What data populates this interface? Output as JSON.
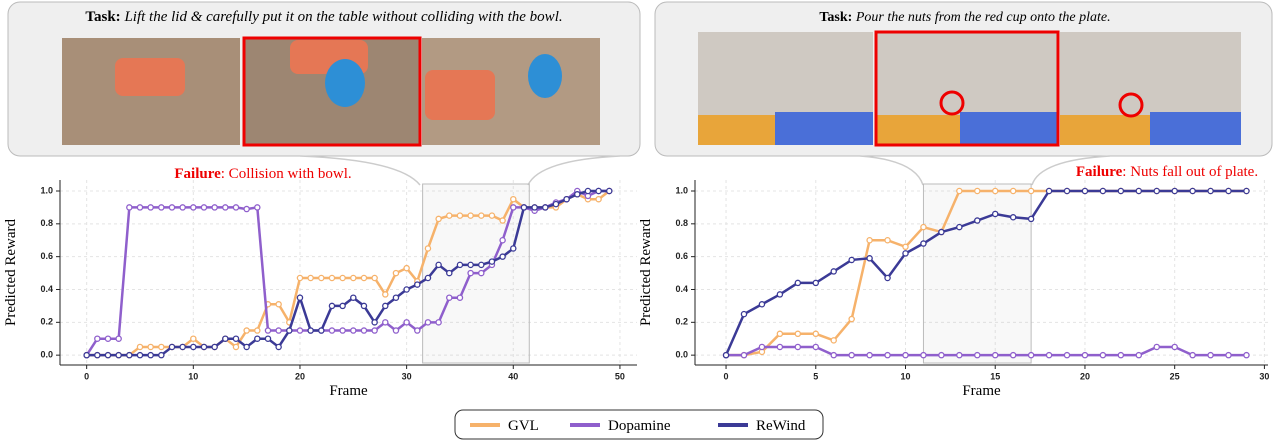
{
  "chart_data": [
    {
      "type": "line",
      "task_label": "Task:",
      "task": "Lift the lid & carefully put it on the table without colliding with the bowl.",
      "failure_label": "Failure",
      "failure_text": ": Collision with bowl.",
      "xlabel": "Frame",
      "ylabel": "Predicted Reward",
      "x": [
        0,
        1,
        2,
        3,
        4,
        5,
        6,
        7,
        8,
        9,
        10,
        11,
        12,
        13,
        14,
        15,
        16,
        17,
        18,
        19,
        20,
        21,
        22,
        23,
        24,
        25,
        26,
        27,
        28,
        29,
        30,
        31,
        32,
        33,
        34,
        35,
        36,
        37,
        38,
        39,
        40,
        41,
        42,
        43,
        44,
        45,
        46,
        47,
        48,
        49
      ],
      "xlim": [
        -2.5,
        51.6
      ],
      "xticks": [
        0,
        10,
        20,
        30,
        40,
        50
      ],
      "ylim": [
        -0.06,
        1.067
      ],
      "yticks": [
        {
          "value": 0,
          "label": "0.0"
        },
        0.2,
        0.4,
        0.6,
        0.8,
        {
          "value": 1,
          "label": "1.0"
        }
      ],
      "grid": true,
      "highlight": [
        31.5,
        41.5
      ],
      "series": [
        {
          "name": "GVL",
          "color": "#f6b26b",
          "values": [
            0,
            0,
            0,
            0,
            0,
            0.05,
            0.05,
            0.05,
            0.05,
            0.05,
            0.1,
            0.05,
            0.05,
            0.1,
            0.05,
            0.15,
            0.15,
            0.31,
            0.31,
            0.2,
            0.47,
            0.47,
            0.47,
            0.47,
            0.47,
            0.47,
            0.47,
            0.47,
            0.37,
            0.5,
            0.53,
            0.45,
            0.65,
            0.83,
            0.85,
            0.85,
            0.85,
            0.85,
            0.85,
            0.82,
            0.95,
            0.9,
            0.9,
            0.9,
            0.9,
            0.95,
            0.98,
            0.95,
            0.95,
            1.0
          ]
        },
        {
          "name": "Dopamine",
          "color": "#8f5fcc",
          "values": [
            0,
            0.1,
            0.1,
            0.1,
            0.9,
            0.9,
            0.9,
            0.9,
            0.9,
            0.9,
            0.9,
            0.9,
            0.9,
            0.9,
            0.9,
            0.89,
            0.9,
            0.15,
            0.15,
            0.15,
            0.15,
            0.15,
            0.15,
            0.15,
            0.15,
            0.15,
            0.15,
            0.15,
            0.2,
            0.15,
            0.2,
            0.15,
            0.2,
            0.2,
            0.35,
            0.35,
            0.5,
            0.5,
            0.55,
            0.7,
            0.9,
            0.9,
            0.88,
            0.9,
            0.93,
            0.95,
            1.0,
            0.97,
            1.0,
            1.0
          ]
        },
        {
          "name": "ReWind",
          "color": "#3b3a96",
          "values": [
            0,
            0,
            0,
            0,
            0,
            0,
            0,
            0,
            0.05,
            0.05,
            0.05,
            0.05,
            0.05,
            0.1,
            0.1,
            0.05,
            0.1,
            0.1,
            0.05,
            0.15,
            0.35,
            0.15,
            0.15,
            0.3,
            0.3,
            0.35,
            0.3,
            0.2,
            0.3,
            0.35,
            0.4,
            0.43,
            0.47,
            0.55,
            0.5,
            0.55,
            0.55,
            0.55,
            0.57,
            0.6,
            0.65,
            0.9,
            0.9,
            0.9,
            0.92,
            0.95,
            0.98,
            1.0,
            1.0,
            1.0
          ]
        }
      ]
    },
    {
      "type": "line",
      "task_label": "Task:",
      "task": "Pour the nuts from the red cup onto the plate.",
      "failure_label": "Failure",
      "failure_text": ": Nuts fall out of plate.",
      "xlabel": "Frame",
      "ylabel": "Predicted Reward",
      "x": [
        0,
        1,
        2,
        3,
        4,
        5,
        6,
        7,
        8,
        9,
        10,
        11,
        12,
        13,
        14,
        15,
        16,
        17,
        18,
        19,
        20,
        21,
        22,
        23,
        24,
        25,
        26,
        27,
        28,
        29
      ],
      "xlim": [
        -1.73,
        30.2
      ],
      "xticks": [
        0,
        5,
        10,
        15,
        20,
        25,
        30
      ],
      "ylim": [
        -0.06,
        1.067
      ],
      "yticks": [
        {
          "value": 0,
          "label": "0.0"
        },
        0.2,
        0.4,
        0.6,
        0.8,
        {
          "value": 1,
          "label": "1.0"
        }
      ],
      "grid": true,
      "highlight": [
        11,
        17
      ],
      "series": [
        {
          "name": "GVL",
          "color": "#f6b26b",
          "values": [
            0,
            0,
            0.02,
            0.13,
            0.13,
            0.13,
            0.09,
            0.22,
            0.7,
            0.7,
            0.66,
            0.78,
            0.75,
            1.0,
            1.0,
            1.0,
            1.0,
            1.0,
            1.0,
            1.0,
            1.0,
            1.0,
            1.0,
            1.0,
            1.0,
            1.0,
            1.0,
            1.0,
            1.0,
            1.0
          ]
        },
        {
          "name": "Dopamine",
          "color": "#8f5fcc",
          "values": [
            0,
            0,
            0.05,
            0.05,
            0.05,
            0.05,
            0,
            0,
            0,
            0,
            0,
            0,
            0,
            0,
            0,
            0,
            0,
            0,
            0,
            0,
            0,
            0,
            0,
            0,
            0.05,
            0.05,
            0,
            0,
            0,
            0
          ]
        },
        {
          "name": "ReWind",
          "color": "#3b3a96",
          "values": [
            0,
            0.25,
            0.31,
            0.37,
            0.44,
            0.44,
            0.51,
            0.58,
            0.59,
            0.47,
            0.62,
            0.68,
            0.75,
            0.78,
            0.82,
            0.86,
            0.84,
            0.83,
            1.0,
            1.0,
            1.0,
            1.0,
            1.0,
            1.0,
            1.0,
            1.0,
            1.0,
            1.0,
            1.0,
            1.0
          ]
        }
      ]
    }
  ]
}
